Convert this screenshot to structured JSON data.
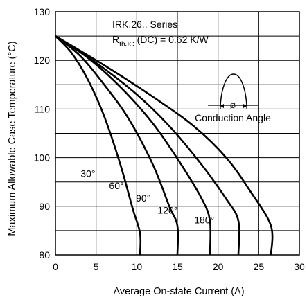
{
  "chart_data": {
    "type": "line",
    "xlabel": "Average On-state Current (A)",
    "ylabel": "Maximum Allowable Case Temperature (°C)",
    "xlim": [
      0,
      30
    ],
    "ylim": [
      80,
      130
    ],
    "x_ticks": [
      "0",
      "5",
      "10",
      "15",
      "20",
      "25",
      "30"
    ],
    "y_ticks": [
      "80",
      "90",
      "100",
      "110",
      "120",
      "130"
    ],
    "grid": true,
    "annotations": {
      "series_title": "IRK.26.. Series",
      "rth_main": "R",
      "rth_sub": "thJC",
      "rth_rest": " (DC) = 0.62 K/W",
      "inset_symbol": "Ø",
      "inset_label": "Conduction Angle"
    },
    "series": [
      {
        "name": "30°",
        "x": [
          0,
          2,
          4,
          6,
          8,
          9.5,
          10.4,
          10.4
        ],
        "y": [
          125,
          121.5,
          116,
          108.5,
          98.5,
          89.5,
          84.5,
          80
        ]
      },
      {
        "name": "60°",
        "x": [
          0,
          3,
          6,
          9,
          12,
          14,
          15,
          15
        ],
        "y": [
          125,
          121,
          115,
          108,
          98.5,
          90,
          86,
          80
        ]
      },
      {
        "name": "90°",
        "x": [
          0,
          4,
          8,
          12,
          15.5,
          18,
          19,
          19
        ],
        "y": [
          125,
          120.5,
          114.5,
          107,
          98.5,
          91.5,
          87,
          80
        ]
      },
      {
        "name": "120°",
        "x": [
          0,
          5,
          10,
          14,
          18,
          21,
          22.5,
          22.5
        ],
        "y": [
          125,
          119.5,
          113,
          106.5,
          98.5,
          91.5,
          87,
          80
        ]
      },
      {
        "name": "180°",
        "x": [
          0,
          6,
          12,
          17,
          21,
          24,
          26.5,
          26.5
        ],
        "y": [
          125,
          119,
          112.5,
          106.5,
          100,
          93,
          86,
          80
        ]
      }
    ]
  }
}
